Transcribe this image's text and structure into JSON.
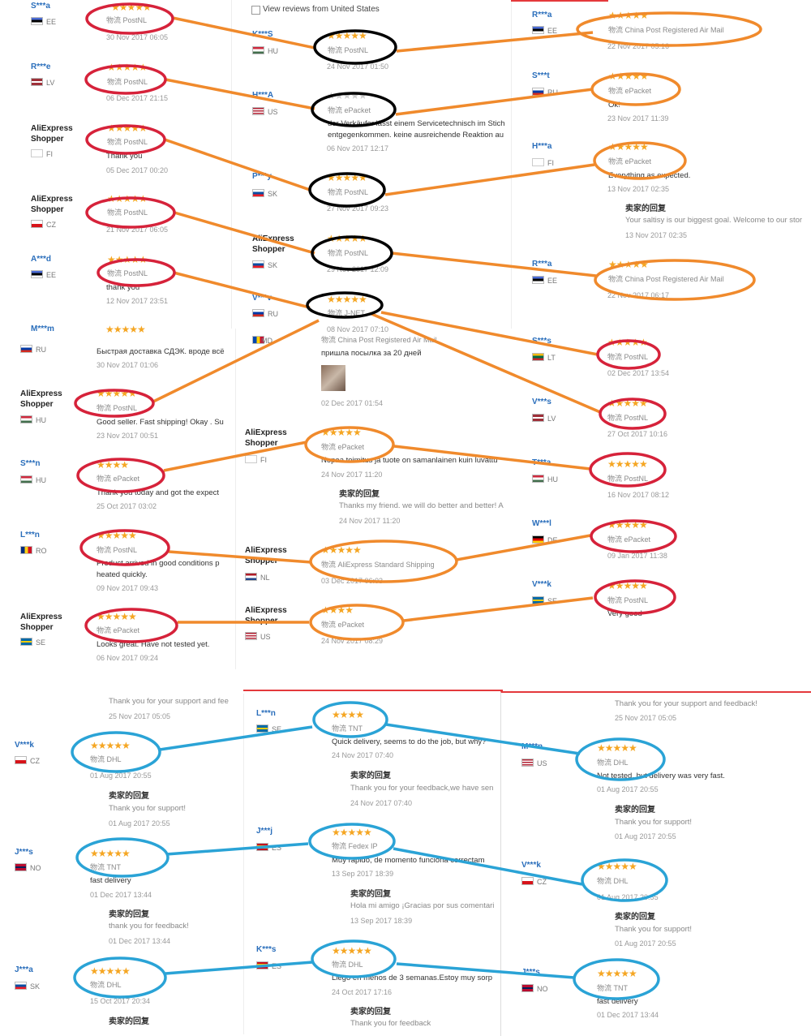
{
  "colors": {
    "orange": "#f08a2c",
    "red": "#d6223a",
    "black": "#000000",
    "blue": "#2aa3d6",
    "star": "#f5a623"
  },
  "filter": {
    "label": "View reviews from United States"
  },
  "seller_reply_title": "卖家的回复",
  "reviews": [
    {
      "user": "S***a",
      "country": "EE",
      "stars": "★★★★★",
      "ship": "物流 PostNL",
      "date": "30 Nov 2017 06:05"
    },
    {
      "user": "R***e",
      "country": "LV",
      "stars": "★★★★★",
      "ship": "物流 PostNL",
      "date": "06 Dec 2017 21:15"
    },
    {
      "user": "AliExpress Shopper",
      "country": "FI",
      "stars": "★★★★★",
      "ship": "物流 PostNL",
      "comment": "Thank you",
      "date": "05 Dec 2017 00:20"
    },
    {
      "user": "AliExpress Shopper",
      "country": "CZ",
      "stars": "★★★★★",
      "ship": "物流 PostNL",
      "date": "21 Nov 2017 06:05"
    },
    {
      "user": "A***d",
      "country": "EE",
      "stars": "★★★★★",
      "ship": "物流 PostNL",
      "comment": "thank you",
      "date": "12 Nov 2017 23:51"
    },
    {
      "user": "M***m",
      "stars": "★★★★★"
    },
    {
      "user": "K***S",
      "country": "HU",
      "stars": "★★★★★",
      "ship": "物流 PostNL",
      "date": "24 Nov 2017 01:50"
    },
    {
      "user": "H***A",
      "country": "US",
      "stars": "★★★★★",
      "ship": "物流 ePacket",
      "comment": "der Verkäufer lässt einem Servicetechnisch im Stich",
      "comment2": "entgegenkommen. keine ausreichende Reaktion au",
      "date": "06 Nov 2017 12:17"
    },
    {
      "user": "P***y",
      "country": "SK",
      "stars": "★★★★★",
      "ship": "物流 PostNL",
      "date": "27 Nov 2017 09:23"
    },
    {
      "user": "AliExpress Shopper",
      "country": "SK",
      "stars": "★★★★★",
      "ship": "物流 PostNL",
      "date": "29 Nov 2017 12:09"
    },
    {
      "user": "V***v",
      "country": "RU",
      "stars": "★★★★★",
      "ship": "物流 J-NET",
      "date": "08 Nov 2017 07:10"
    },
    {
      "user": "R***a",
      "country": "EE",
      "stars": "★★★★★",
      "ship": "物流 China Post Registered Air Mail",
      "date": "22 Nov 2017 05:16"
    },
    {
      "user": "S***t",
      "country": "RU",
      "stars": "★★★★★",
      "ship": "物流 ePacket",
      "comment": "Ok!",
      "date": "23 Nov 2017 11:39"
    },
    {
      "user": "H***a",
      "country": "FI",
      "stars": "★★★★★",
      "ship": "物流 ePacket",
      "comment": "Everything as expected.",
      "date": "13 Nov 2017 02:35",
      "reply": "Your saltisy is our biggest goal. Welcome to our stor",
      "reply_date": "13 Nov 2017 02:35"
    },
    {
      "user": "R***a",
      "country": "EE",
      "stars": "★★★★★",
      "ship": "物流 China Post Registered Air Mail",
      "date": "22 Nov 2017 06:17"
    },
    {
      "country": "RU",
      "comment": "Быстрая доставка СДЭК. вроде всё",
      "date": "30 Nov 2017 01:06"
    },
    {
      "user": "AliExpress Shopper",
      "country": "HU",
      "stars": "★★★★★",
      "ship": "物流 PostNL",
      "comment": "Good seller. Fast shipping! Okay . Su",
      "date": "23 Nov 2017 00:51"
    },
    {
      "user": "S***n",
      "country": "HU",
      "stars": "★★★★",
      "ship": "物流 ePacket",
      "comment": "Thank you today and got the expect",
      "date": "25 Oct 2017 03:02"
    },
    {
      "user": "L***n",
      "country": "RO",
      "stars": "★★★★★",
      "ship": "物流 PostNL",
      "comment": "Product arrived in good conditions p",
      "comment2": "heated quickly.",
      "date": "09 Nov 2017 09:43"
    },
    {
      "user": "AliExpress Shopper",
      "country": "SE",
      "stars": "★★★★★",
      "ship": "物流 ePacket",
      "comment": "Looks great. Have not tested yet.",
      "date": "06 Nov 2017 09:24"
    },
    {
      "country": "MD",
      "ship": "物流 China Post Registered Air Mail",
      "comment": "пришла посылка за 20 дней",
      "date": "02 Dec 2017 01:54"
    },
    {
      "user": "AliExpress Shopper",
      "country": "FI",
      "stars": "★★★★★",
      "ship": "物流 ePacket",
      "comment": "Nopaa toimitus ja tuote on samanlainen kuin luvattu",
      "date": "24 Nov 2017 11:20",
      "reply": "Thanks my friend. we will do better and better! A",
      "reply_date": "24 Nov 2017 11:20"
    },
    {
      "user": "AliExpress Shopper",
      "country": "NL",
      "stars": "★★★★★",
      "ship": "物流 AliExpress Standard Shipping",
      "date": "03 Dec 2017 06:03"
    },
    {
      "user": "AliExpress Shopper",
      "country": "US",
      "stars": "★★★★",
      "ship": "物流 ePacket",
      "date": "24 Nov 2017 08:29"
    },
    {
      "user": "S***s",
      "country": "LT",
      "stars": "★★★★★",
      "ship": "物流 PostNL",
      "date": "02 Dec 2017 13:54"
    },
    {
      "user": "V***s",
      "country": "LV",
      "stars": "★★★★★",
      "ship": "物流 PostNL",
      "date": "27 Oct 2017 10:16"
    },
    {
      "user": "T***a",
      "country": "HU",
      "stars": "★★★★★",
      "ship": "物流 PostNL",
      "date": "16 Nov 2017 08:12"
    },
    {
      "user": "W***l",
      "country": "DE",
      "stars": "★★★★★",
      "ship": "物流 ePacket",
      "date": "09 Jan 2017 11:38"
    },
    {
      "user": "V***k",
      "country": "SE",
      "stars": "★★★★★",
      "ship": "物流 PostNL",
      "comment": "Very good"
    },
    {
      "comment": "Thank you for your support and fee",
      "date": "25 Nov 2017 05:05"
    },
    {
      "user": "V***k",
      "country": "CZ",
      "stars": "★★★★★",
      "ship": "物流 DHL",
      "date": "01 Aug 2017 20:55",
      "reply": "Thank you for support!",
      "reply_date": "01 Aug 2017 20:55"
    },
    {
      "user": "J***s",
      "country": "NO",
      "stars": "★★★★★",
      "ship": "物流 TNT",
      "comment": "fast delivery",
      "date": "01 Dec 2017 13:44",
      "reply": "thank you for feedback!",
      "reply_date": "01 Dec 2017 13:44"
    },
    {
      "user": "J***a",
      "country": "SK",
      "stars": "★★★★★",
      "ship": "物流 DHL",
      "date": "15 Oct 2017 20:34"
    },
    {
      "user": "L***n",
      "country": "SE",
      "stars": "★★★★",
      "ship": "物流 TNT",
      "comment": "Quick delivery, seems to do the job, but why?",
      "date": "24 Nov 2017 07:40",
      "reply": "Thank you for your feedback,we have sen",
      "reply_date": "24 Nov 2017 07:40"
    },
    {
      "user": "J***j",
      "country": "ES",
      "stars": "★★★★★",
      "ship": "物流 Fedex IP",
      "comment": "Muy rapido, de momento funciona correctam",
      "date": "13 Sep 2017 18:39",
      "reply": "Hola mi amigo ¡Gracias por sus comentari",
      "reply_date": "13 Sep 2017 18:39"
    },
    {
      "user": "K***s",
      "country": "ES",
      "stars": "★★★★★",
      "ship": "物流 DHL",
      "comment": "Llego en menos de 3 semanas.Estoy muy sorp",
      "date": "24 Oct 2017 17:16",
      "reply": "Thank you for feedback"
    },
    {
      "comment": "Thank you for your support and feedback!",
      "date": "25 Nov 2017 05:05"
    },
    {
      "user": "M***n",
      "country": "US",
      "stars": "★★★★★",
      "ship": "物流 DHL",
      "comment": "Not tested, but delivery was very fast.",
      "date": "01 Aug 2017 20:55",
      "reply": "Thank you for support!",
      "reply_date": "01 Aug 2017 20:55"
    },
    {
      "user": "V***k",
      "country": "CZ",
      "stars": "★★★★★",
      "ship": "物流 DHL",
      "date": "01 Aug 2017 20:55",
      "reply": "Thank you for support!",
      "reply_date": "01 Aug 2017 20:55"
    },
    {
      "user": "J***s",
      "country": "NO",
      "stars": "★★★★★",
      "ship": "物流 TNT",
      "comment": "fast delivery",
      "date": "01 Dec 2017 13:44"
    }
  ]
}
